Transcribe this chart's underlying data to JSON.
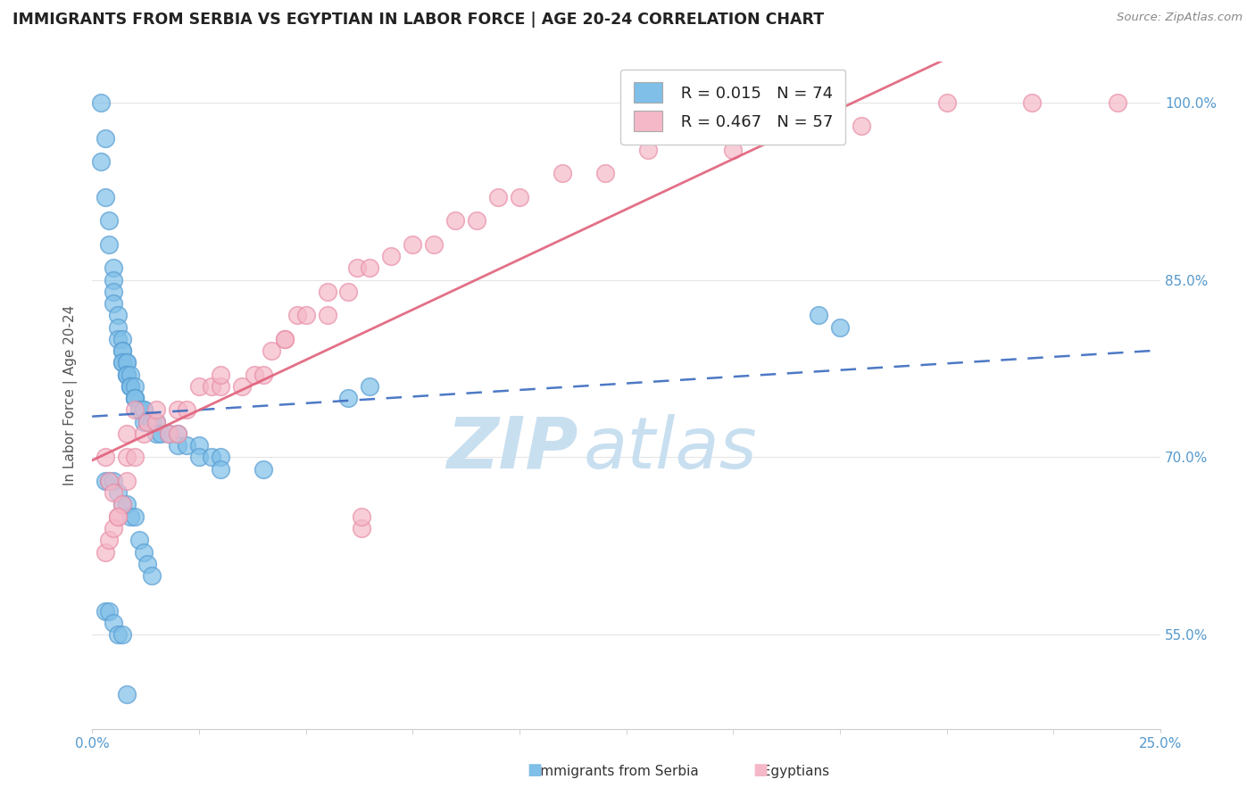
{
  "title": "IMMIGRANTS FROM SERBIA VS EGYPTIAN IN LABOR FORCE | AGE 20-24 CORRELATION CHART",
  "source": "Source: ZipAtlas.com",
  "ylabel": "In Labor Force | Age 20-24",
  "xlabel_serbia": "Immigrants from Serbia",
  "xlabel_egyptian": "Egyptians",
  "watermark_zip": "ZIP",
  "watermark_atlas": "atlas",
  "serbia_R": 0.015,
  "serbia_N": 74,
  "egyptian_R": 0.467,
  "egyptian_N": 57,
  "xlim": [
    0.0,
    0.25
  ],
  "ylim": [
    0.47,
    1.035
  ],
  "yticks": [
    0.55,
    0.7,
    0.85,
    1.0
  ],
  "ytick_labels": [
    "55.0%",
    "70.0%",
    "85.0%",
    "100.0%"
  ],
  "xticks": [
    0.0,
    0.25
  ],
  "xtick_labels": [
    "0.0%",
    "25.0%"
  ],
  "serbia_color": "#7fbfe8",
  "serbian_edge": "#5a9fd4",
  "egyptian_color": "#f5b8c8",
  "egyptian_edge": "#e890a8",
  "serbia_line_color": "#3a6abf",
  "egyptian_line_color": "#e0607a",
  "serbia_x": [
    0.002,
    0.003,
    0.002,
    0.003,
    0.004,
    0.004,
    0.005,
    0.005,
    0.005,
    0.005,
    0.006,
    0.006,
    0.006,
    0.007,
    0.007,
    0.007,
    0.007,
    0.007,
    0.008,
    0.008,
    0.008,
    0.008,
    0.008,
    0.009,
    0.009,
    0.009,
    0.009,
    0.01,
    0.01,
    0.01,
    0.01,
    0.011,
    0.011,
    0.012,
    0.012,
    0.012,
    0.013,
    0.013,
    0.014,
    0.015,
    0.015,
    0.016,
    0.018,
    0.02,
    0.02,
    0.022,
    0.025,
    0.025,
    0.028,
    0.03,
    0.03,
    0.04,
    0.003,
    0.004,
    0.005,
    0.006,
    0.007,
    0.008,
    0.009,
    0.01,
    0.011,
    0.012,
    0.013,
    0.014,
    0.06,
    0.065,
    0.17,
    0.175,
    0.003,
    0.004,
    0.005,
    0.006,
    0.007,
    0.008
  ],
  "serbia_y": [
    1.0,
    0.97,
    0.95,
    0.92,
    0.9,
    0.88,
    0.86,
    0.85,
    0.84,
    0.83,
    0.82,
    0.81,
    0.8,
    0.8,
    0.79,
    0.79,
    0.78,
    0.78,
    0.78,
    0.78,
    0.77,
    0.77,
    0.77,
    0.77,
    0.76,
    0.76,
    0.76,
    0.76,
    0.75,
    0.75,
    0.75,
    0.74,
    0.74,
    0.74,
    0.74,
    0.73,
    0.73,
    0.73,
    0.73,
    0.73,
    0.72,
    0.72,
    0.72,
    0.72,
    0.71,
    0.71,
    0.71,
    0.7,
    0.7,
    0.7,
    0.69,
    0.69,
    0.68,
    0.68,
    0.68,
    0.67,
    0.66,
    0.66,
    0.65,
    0.65,
    0.63,
    0.62,
    0.61,
    0.6,
    0.75,
    0.76,
    0.82,
    0.81,
    0.57,
    0.57,
    0.56,
    0.55,
    0.55,
    0.5
  ],
  "egyptian_x": [
    0.003,
    0.004,
    0.005,
    0.006,
    0.007,
    0.008,
    0.008,
    0.008,
    0.01,
    0.01,
    0.012,
    0.013,
    0.015,
    0.015,
    0.018,
    0.02,
    0.02,
    0.022,
    0.025,
    0.028,
    0.03,
    0.03,
    0.035,
    0.038,
    0.04,
    0.042,
    0.045,
    0.045,
    0.048,
    0.05,
    0.055,
    0.055,
    0.06,
    0.062,
    0.065,
    0.07,
    0.075,
    0.08,
    0.085,
    0.09,
    0.095,
    0.1,
    0.11,
    0.12,
    0.13,
    0.15,
    0.16,
    0.18,
    0.2,
    0.22,
    0.24,
    0.003,
    0.004,
    0.005,
    0.006,
    0.063,
    0.063
  ],
  "egyptian_y": [
    0.7,
    0.68,
    0.67,
    0.65,
    0.66,
    0.68,
    0.7,
    0.72,
    0.7,
    0.74,
    0.72,
    0.73,
    0.73,
    0.74,
    0.72,
    0.72,
    0.74,
    0.74,
    0.76,
    0.76,
    0.76,
    0.77,
    0.76,
    0.77,
    0.77,
    0.79,
    0.8,
    0.8,
    0.82,
    0.82,
    0.82,
    0.84,
    0.84,
    0.86,
    0.86,
    0.87,
    0.88,
    0.88,
    0.9,
    0.9,
    0.92,
    0.92,
    0.94,
    0.94,
    0.96,
    0.96,
    0.98,
    0.98,
    1.0,
    1.0,
    1.0,
    0.62,
    0.63,
    0.64,
    0.65,
    0.64,
    0.65
  ],
  "title_fontsize": 12.5,
  "axis_label_fontsize": 11,
  "tick_fontsize": 11,
  "legend_fontsize": 13,
  "watermark_fontsize_zip": 58,
  "watermark_fontsize_atlas": 58,
  "watermark_color_zip": "#c8dff0",
  "watermark_color_atlas": "#c8dff0",
  "background_color": "#ffffff",
  "grid_color": "#e5e5e5",
  "tick_color": "#5599cc"
}
